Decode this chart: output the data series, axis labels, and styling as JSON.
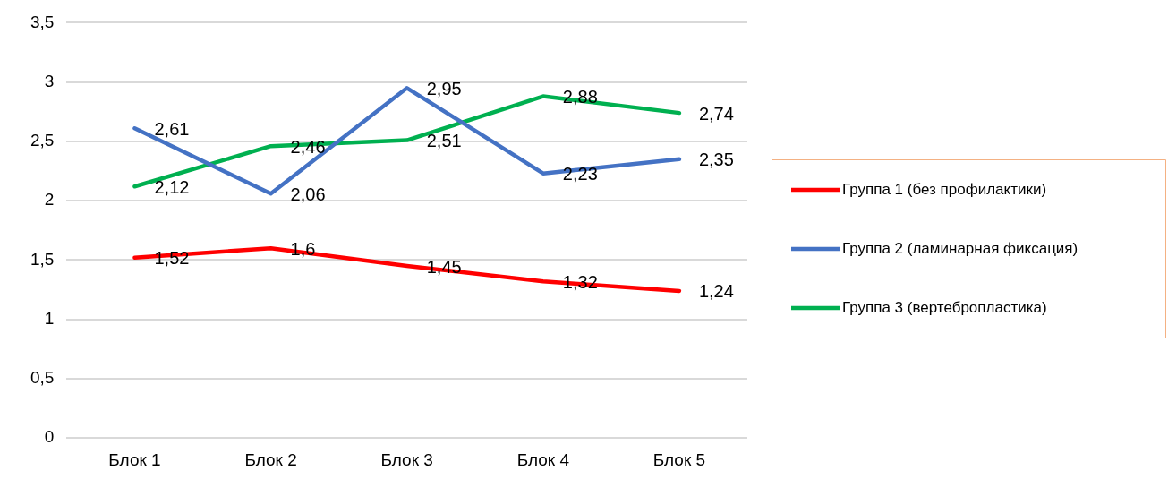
{
  "chart_data": {
    "type": "line",
    "categories": [
      "Блок 1",
      "Блок 2",
      "Блок 3",
      "Блок 4",
      "Блок 5"
    ],
    "series": [
      {
        "name": "Группа 1 (без профилактики)",
        "color": "#ff0000",
        "values": [
          1.52,
          1.6,
          1.45,
          1.32,
          1.24
        ],
        "value_labels": [
          "1,52",
          "1,6",
          "1,45",
          "1,32",
          "1,24"
        ]
      },
      {
        "name": "Группа 2 (ламинарная фиксация)",
        "color": "#4472c4",
        "values": [
          2.61,
          2.06,
          2.95,
          2.23,
          2.35
        ],
        "value_labels": [
          "2,61",
          "2,06",
          "2,95",
          "2,23",
          "2,35"
        ]
      },
      {
        "name": "Группа 3 (вертебропластика)",
        "color": "#00b050",
        "values": [
          2.12,
          2.46,
          2.51,
          2.88,
          2.74
        ],
        "value_labels": [
          "2,12",
          "2,46",
          "2,51",
          "2,88",
          "2,74"
        ]
      }
    ],
    "ylim": [
      0,
      3.5
    ],
    "yticks": [
      0,
      {
        "value": 0.5,
        "label": "0,5"
      },
      1,
      {
        "value": 1.5,
        "label": "1,5"
      },
      2,
      {
        "value": 2.5,
        "label": "2,5"
      },
      3,
      {
        "value": 3.5,
        "label": "3,5"
      }
    ],
    "grid": "y",
    "legend": "right",
    "marker": "none",
    "line_style": "solid"
  }
}
